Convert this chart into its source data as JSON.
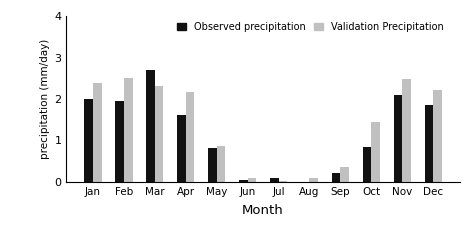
{
  "months": [
    "Jan",
    "Feb",
    "Mar",
    "Apr",
    "May",
    "Jun",
    "Jul",
    "Aug",
    "Sep",
    "Oct",
    "Nov",
    "Dec"
  ],
  "observed": [
    2.0,
    1.95,
    2.7,
    1.62,
    0.82,
    0.04,
    0.08,
    0.0,
    0.22,
    0.84,
    2.1,
    1.85
  ],
  "validation": [
    2.38,
    2.5,
    2.32,
    2.18,
    0.87,
    0.1,
    0.02,
    0.08,
    0.35,
    1.44,
    2.48,
    2.22
  ],
  "observed_color": "#111111",
  "validation_color": "#c0c0c0",
  "ylim": [
    0,
    4
  ],
  "yticks": [
    0,
    1,
    2,
    3,
    4
  ],
  "ylabel": "precipitation (mm/day)",
  "xlabel": "Month",
  "legend_observed": "Observed precipitation",
  "legend_validation": "Validation Precipitation",
  "bar_width": 0.28,
  "figsize": [
    4.74,
    2.33
  ],
  "dpi": 100
}
